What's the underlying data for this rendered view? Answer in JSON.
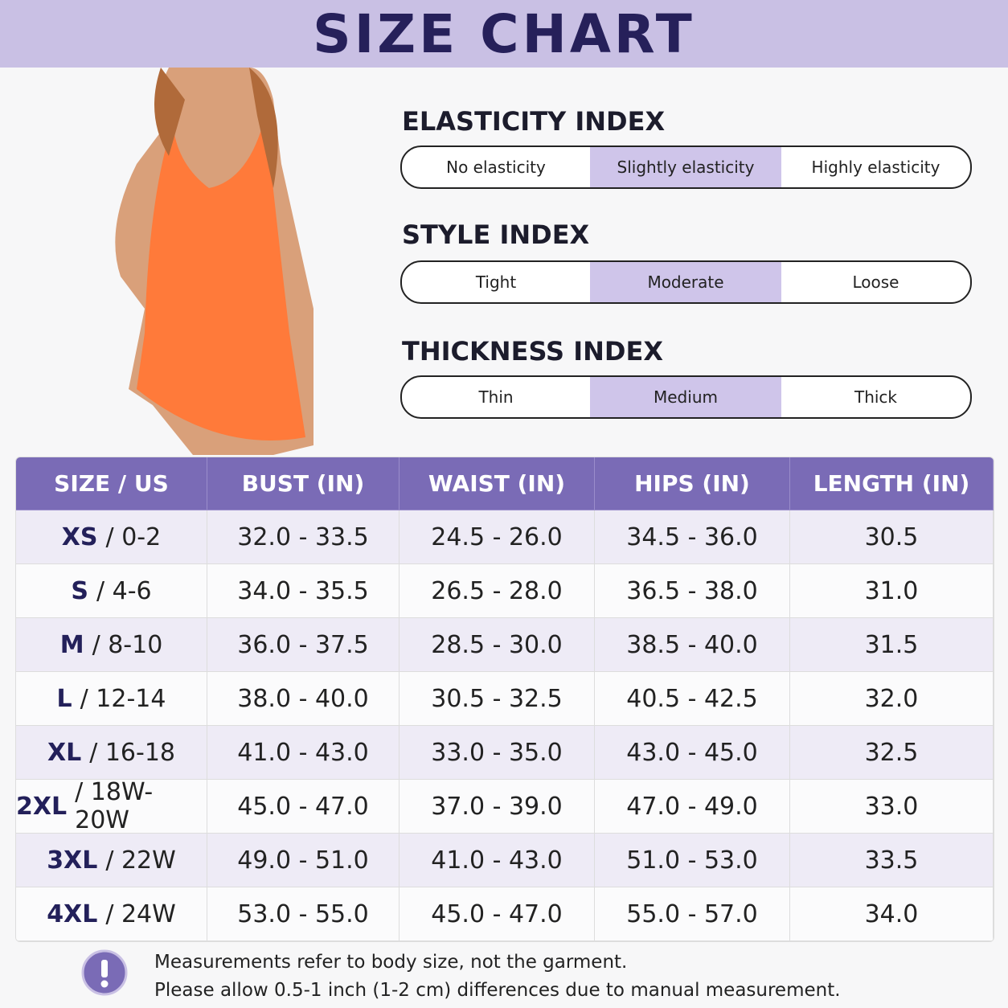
{
  "header": {
    "title": "SIZE CHART"
  },
  "indices": [
    {
      "title": "ELASTICITY INDEX",
      "options": [
        "No elasticity",
        "Slightly elasticity",
        "Highly elasticity"
      ],
      "selected": 1
    },
    {
      "title": "STYLE INDEX",
      "options": [
        "Tight",
        "Moderate",
        "Loose"
      ],
      "selected": 1
    },
    {
      "title": "THICKNESS INDEX",
      "options": [
        "Thin",
        "Medium",
        "Thick"
      ],
      "selected": 1
    }
  ],
  "table": {
    "columns": [
      "SIZE / US",
      "BUST (IN)",
      "WAIST (IN)",
      "HIPS (IN)",
      "LENGTH (IN)"
    ],
    "rows": [
      {
        "size": "XS",
        "us": "/ 0-2",
        "cells": [
          "32.0 - 33.5",
          "24.5 - 26.0",
          "34.5 - 36.0",
          "30.5"
        ]
      },
      {
        "size": "S",
        "us": "/ 4-6",
        "cells": [
          "34.0 - 35.5",
          "26.5 - 28.0",
          "36.5 - 38.0",
          "31.0"
        ]
      },
      {
        "size": "M",
        "us": "/ 8-10",
        "cells": [
          "36.0 - 37.5",
          "28.5 - 30.0",
          "38.5 - 40.0",
          "31.5"
        ]
      },
      {
        "size": "L",
        "us": "/ 12-14",
        "cells": [
          "38.0 - 40.0",
          "30.5 - 32.5",
          "40.5 - 42.5",
          "32.0"
        ]
      },
      {
        "size": "XL",
        "us": "/ 16-18",
        "cells": [
          "41.0 - 43.0",
          "33.0 - 35.0",
          "43.0 - 45.0",
          "32.5"
        ]
      },
      {
        "size": "2XL",
        "us": "/ 18W-20W",
        "cells": [
          "45.0 - 47.0",
          "37.0 - 39.0",
          "47.0 - 49.0",
          "33.0"
        ]
      },
      {
        "size": "3XL",
        "us": "/ 22W",
        "cells": [
          "49.0 - 51.0",
          "41.0 - 43.0",
          "51.0 - 53.0",
          "33.5"
        ]
      },
      {
        "size": "4XL",
        "us": "/ 24W",
        "cells": [
          "53.0 - 55.0",
          "45.0 - 47.0",
          "55.0 - 57.0",
          "34.0"
        ]
      }
    ]
  },
  "notes": [
    "Measurements refer to body size, not the garment.",
    "Please allow 0.5-1 inch (1-2 cm) differences due to manual measurement."
  ]
}
